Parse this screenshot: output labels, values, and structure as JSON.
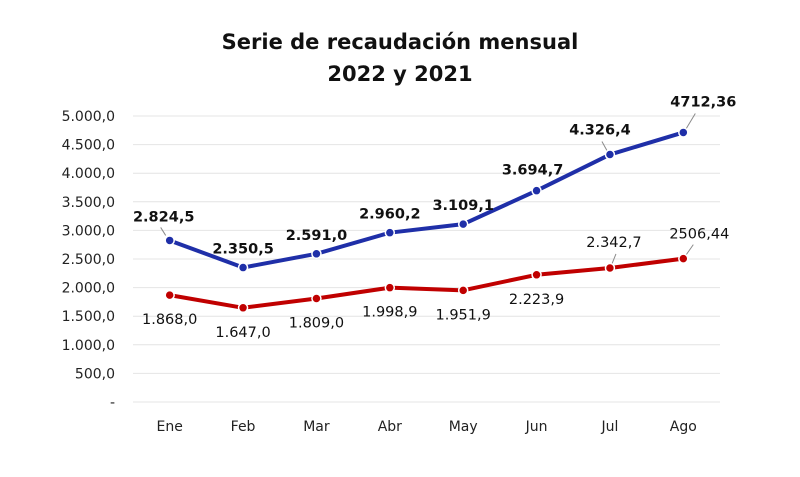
{
  "chart_data": {
    "type": "line",
    "title": [
      "Serie de recaudación mensual",
      "2022 y 2021"
    ],
    "xlabel": "",
    "ylabel": "",
    "categories": [
      "Ene",
      "Feb",
      "Mar",
      "Abr",
      "May",
      "Jun",
      "Jul",
      "Ago"
    ],
    "ylim": [
      0,
      5000
    ],
    "yticks": [
      0,
      500,
      1000,
      1500,
      2000,
      2500,
      3000,
      3500,
      4000,
      4500,
      5000
    ],
    "ytick_labels": [
      "-",
      "500,0",
      "1.000,0",
      "1.500,0",
      "2.000,0",
      "2.500,0",
      "3.000,0",
      "3.500,0",
      "4.000,0",
      "4.500,0",
      "5.000,0"
    ],
    "grid": true,
    "legend": "none",
    "series": [
      {
        "color": "#1f2fa8",
        "values": [
          2824.5,
          2350.5,
          2591.0,
          2960.2,
          3109.1,
          3694.7,
          4326.4,
          4712.36
        ],
        "labels": [
          "2.824,5",
          "2.350,5",
          "2.591,0",
          "2.960,2",
          "3.109,1",
          "3.694,7",
          "4.326,4",
          "4712,36"
        ],
        "label_position": "above",
        "label_bold": true
      },
      {
        "color": "#c00000",
        "values": [
          1868.0,
          1647.0,
          1809.0,
          1998.9,
          1951.9,
          2223.9,
          2342.7,
          2506.44
        ],
        "labels": [
          "1.868,0",
          "1.647,0",
          "1.809,0",
          "1.998,9",
          "1.951,9",
          "2.223,9",
          "2.342,7",
          "2506,44"
        ],
        "label_position": "below",
        "label_bold": false
      }
    ]
  }
}
